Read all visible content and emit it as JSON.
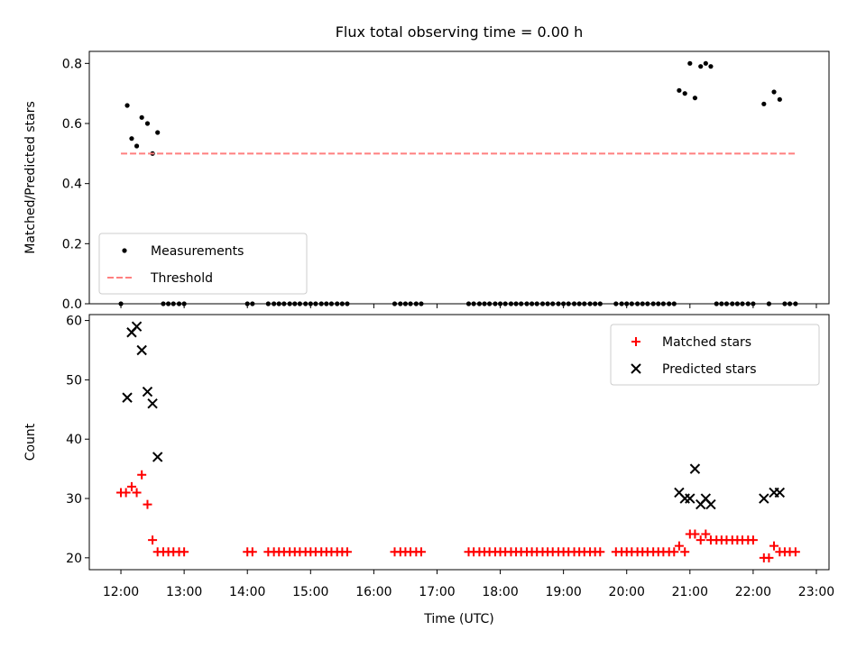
{
  "chart_data": [
    {
      "type": "scatter",
      "title": "Flux total observing time = 0.00 h",
      "xlabel": "",
      "ylabel": "Matched/Predicted stars",
      "xlim": [
        11.5,
        23.2
      ],
      "ylim": [
        0,
        0.84
      ],
      "yticks": [
        0.0,
        0.2,
        0.4,
        0.6,
        0.8
      ],
      "ytick_labels": [
        "0.0",
        "0.2",
        "0.4",
        "0.6",
        "0.8"
      ],
      "xticks": [
        12,
        13,
        14,
        15,
        16,
        17,
        18,
        19,
        20,
        21,
        22,
        23
      ],
      "legend_position": "lower-left",
      "series": [
        {
          "name": "Measurements",
          "marker": "dot",
          "color": "#000000",
          "points": [
            [
              12.0,
              0.0
            ],
            [
              12.1,
              0.66
            ],
            [
              12.17,
              0.55
            ],
            [
              12.25,
              0.525
            ],
            [
              12.33,
              0.62
            ],
            [
              12.42,
              0.6
            ],
            [
              12.5,
              0.5
            ],
            [
              12.58,
              0.57
            ],
            [
              12.67,
              0.0
            ],
            [
              12.75,
              0.0
            ],
            [
              12.83,
              0.0
            ],
            [
              12.92,
              0.0
            ],
            [
              13.0,
              0.0
            ],
            [
              14.0,
              0.0
            ],
            [
              14.08,
              0.0
            ],
            [
              14.33,
              0.0
            ],
            [
              14.42,
              0.0
            ],
            [
              14.5,
              0.0
            ],
            [
              14.58,
              0.0
            ],
            [
              14.67,
              0.0
            ],
            [
              14.75,
              0.0
            ],
            [
              14.83,
              0.0
            ],
            [
              14.92,
              0.0
            ],
            [
              15.0,
              0.0
            ],
            [
              15.08,
              0.0
            ],
            [
              15.17,
              0.0
            ],
            [
              15.25,
              0.0
            ],
            [
              15.33,
              0.0
            ],
            [
              15.42,
              0.0
            ],
            [
              15.5,
              0.0
            ],
            [
              15.58,
              0.0
            ],
            [
              16.33,
              0.0
            ],
            [
              16.42,
              0.0
            ],
            [
              16.5,
              0.0
            ],
            [
              16.58,
              0.0
            ],
            [
              16.67,
              0.0
            ],
            [
              16.75,
              0.0
            ],
            [
              17.5,
              0.0
            ],
            [
              17.58,
              0.0
            ],
            [
              17.67,
              0.0
            ],
            [
              17.75,
              0.0
            ],
            [
              17.83,
              0.0
            ],
            [
              17.92,
              0.0
            ],
            [
              18.0,
              0.0
            ],
            [
              18.08,
              0.0
            ],
            [
              18.17,
              0.0
            ],
            [
              18.25,
              0.0
            ],
            [
              18.33,
              0.0
            ],
            [
              18.42,
              0.0
            ],
            [
              18.5,
              0.0
            ],
            [
              18.58,
              0.0
            ],
            [
              18.67,
              0.0
            ],
            [
              18.75,
              0.0
            ],
            [
              18.83,
              0.0
            ],
            [
              18.92,
              0.0
            ],
            [
              19.0,
              0.0
            ],
            [
              19.08,
              0.0
            ],
            [
              19.17,
              0.0
            ],
            [
              19.25,
              0.0
            ],
            [
              19.33,
              0.0
            ],
            [
              19.42,
              0.0
            ],
            [
              19.5,
              0.0
            ],
            [
              19.58,
              0.0
            ],
            [
              19.83,
              0.0
            ],
            [
              19.92,
              0.0
            ],
            [
              20.0,
              0.0
            ],
            [
              20.08,
              0.0
            ],
            [
              20.17,
              0.0
            ],
            [
              20.25,
              0.0
            ],
            [
              20.33,
              0.0
            ],
            [
              20.42,
              0.0
            ],
            [
              20.5,
              0.0
            ],
            [
              20.58,
              0.0
            ],
            [
              20.67,
              0.0
            ],
            [
              20.75,
              0.0
            ],
            [
              20.83,
              0.71
            ],
            [
              20.92,
              0.7
            ],
            [
              21.0,
              0.8
            ],
            [
              21.08,
              0.685
            ],
            [
              21.17,
              0.79
            ],
            [
              21.25,
              0.8
            ],
            [
              21.33,
              0.79
            ],
            [
              21.42,
              0.0
            ],
            [
              21.5,
              0.0
            ],
            [
              21.58,
              0.0
            ],
            [
              21.67,
              0.0
            ],
            [
              21.75,
              0.0
            ],
            [
              21.83,
              0.0
            ],
            [
              21.92,
              0.0
            ],
            [
              22.0,
              0.0
            ],
            [
              22.17,
              0.665
            ],
            [
              22.25,
              0.0
            ],
            [
              22.33,
              0.705
            ],
            [
              22.42,
              0.68
            ],
            [
              22.5,
              0.0
            ],
            [
              22.58,
              0.0
            ],
            [
              22.67,
              0.0
            ]
          ]
        },
        {
          "name": "Threshold",
          "marker": "dashed-line",
          "color": "#ff7f7f",
          "points": [
            [
              12.0,
              0.5
            ],
            [
              22.67,
              0.5
            ]
          ]
        }
      ]
    },
    {
      "type": "scatter",
      "title": "",
      "xlabel": "Time (UTC)",
      "ylabel": "Count",
      "xlim": [
        11.5,
        23.2
      ],
      "ylim": [
        18,
        61
      ],
      "yticks": [
        20,
        30,
        40,
        50,
        60
      ],
      "ytick_labels": [
        "20",
        "30",
        "40",
        "50",
        "60"
      ],
      "xticks": [
        12,
        13,
        14,
        15,
        16,
        17,
        18,
        19,
        20,
        21,
        22,
        23
      ],
      "xtick_labels": [
        "12:00",
        "13:00",
        "14:00",
        "15:00",
        "16:00",
        "17:00",
        "18:00",
        "19:00",
        "20:00",
        "21:00",
        "22:00",
        "23:00"
      ],
      "legend_position": "upper-right",
      "series": [
        {
          "name": "Matched stars",
          "marker": "plus",
          "color": "#ff0000",
          "points": [
            [
              12.0,
              31
            ],
            [
              12.08,
              31
            ],
            [
              12.17,
              32
            ],
            [
              12.25,
              31
            ],
            [
              12.33,
              34
            ],
            [
              12.42,
              29
            ],
            [
              12.5,
              23
            ],
            [
              12.58,
              21
            ],
            [
              12.67,
              21
            ],
            [
              12.75,
              21
            ],
            [
              12.83,
              21
            ],
            [
              12.92,
              21
            ],
            [
              13.0,
              21
            ],
            [
              14.0,
              21
            ],
            [
              14.08,
              21
            ],
            [
              14.33,
              21
            ],
            [
              14.42,
              21
            ],
            [
              14.5,
              21
            ],
            [
              14.58,
              21
            ],
            [
              14.67,
              21
            ],
            [
              14.75,
              21
            ],
            [
              14.83,
              21
            ],
            [
              14.92,
              21
            ],
            [
              15.0,
              21
            ],
            [
              15.08,
              21
            ],
            [
              15.17,
              21
            ],
            [
              15.25,
              21
            ],
            [
              15.33,
              21
            ],
            [
              15.42,
              21
            ],
            [
              15.5,
              21
            ],
            [
              15.58,
              21
            ],
            [
              16.33,
              21
            ],
            [
              16.42,
              21
            ],
            [
              16.5,
              21
            ],
            [
              16.58,
              21
            ],
            [
              16.67,
              21
            ],
            [
              16.75,
              21
            ],
            [
              17.5,
              21
            ],
            [
              17.58,
              21
            ],
            [
              17.67,
              21
            ],
            [
              17.75,
              21
            ],
            [
              17.83,
              21
            ],
            [
              17.92,
              21
            ],
            [
              18.0,
              21
            ],
            [
              18.08,
              21
            ],
            [
              18.17,
              21
            ],
            [
              18.25,
              21
            ],
            [
              18.33,
              21
            ],
            [
              18.42,
              21
            ],
            [
              18.5,
              21
            ],
            [
              18.58,
              21
            ],
            [
              18.67,
              21
            ],
            [
              18.75,
              21
            ],
            [
              18.83,
              21
            ],
            [
              18.92,
              21
            ],
            [
              19.0,
              21
            ],
            [
              19.08,
              21
            ],
            [
              19.17,
              21
            ],
            [
              19.25,
              21
            ],
            [
              19.33,
              21
            ],
            [
              19.42,
              21
            ],
            [
              19.5,
              21
            ],
            [
              19.58,
              21
            ],
            [
              19.83,
              21
            ],
            [
              19.92,
              21
            ],
            [
              20.0,
              21
            ],
            [
              20.08,
              21
            ],
            [
              20.17,
              21
            ],
            [
              20.25,
              21
            ],
            [
              20.33,
              21
            ],
            [
              20.42,
              21
            ],
            [
              20.5,
              21
            ],
            [
              20.58,
              21
            ],
            [
              20.67,
              21
            ],
            [
              20.75,
              21
            ],
            [
              20.83,
              22
            ],
            [
              20.92,
              21
            ],
            [
              21.0,
              24
            ],
            [
              21.08,
              24
            ],
            [
              21.17,
              23
            ],
            [
              21.25,
              24
            ],
            [
              21.33,
              23
            ],
            [
              21.42,
              23
            ],
            [
              21.5,
              23
            ],
            [
              21.58,
              23
            ],
            [
              21.67,
              23
            ],
            [
              21.75,
              23
            ],
            [
              21.83,
              23
            ],
            [
              21.92,
              23
            ],
            [
              22.0,
              23
            ],
            [
              22.17,
              20
            ],
            [
              22.25,
              20
            ],
            [
              22.33,
              22
            ],
            [
              22.42,
              21
            ],
            [
              22.5,
              21
            ],
            [
              22.58,
              21
            ],
            [
              22.67,
              21
            ]
          ]
        },
        {
          "name": "Predicted stars",
          "marker": "x",
          "color": "#000000",
          "points": [
            [
              12.1,
              47
            ],
            [
              12.17,
              58
            ],
            [
              12.25,
              59
            ],
            [
              12.33,
              55
            ],
            [
              12.42,
              48
            ],
            [
              12.5,
              46
            ],
            [
              12.58,
              37
            ],
            [
              20.83,
              31
            ],
            [
              20.92,
              30
            ],
            [
              21.0,
              30
            ],
            [
              21.08,
              35
            ],
            [
              21.17,
              29
            ],
            [
              21.25,
              30
            ],
            [
              21.33,
              29
            ],
            [
              22.17,
              30
            ],
            [
              22.33,
              31
            ],
            [
              22.42,
              31
            ]
          ]
        }
      ]
    }
  ]
}
